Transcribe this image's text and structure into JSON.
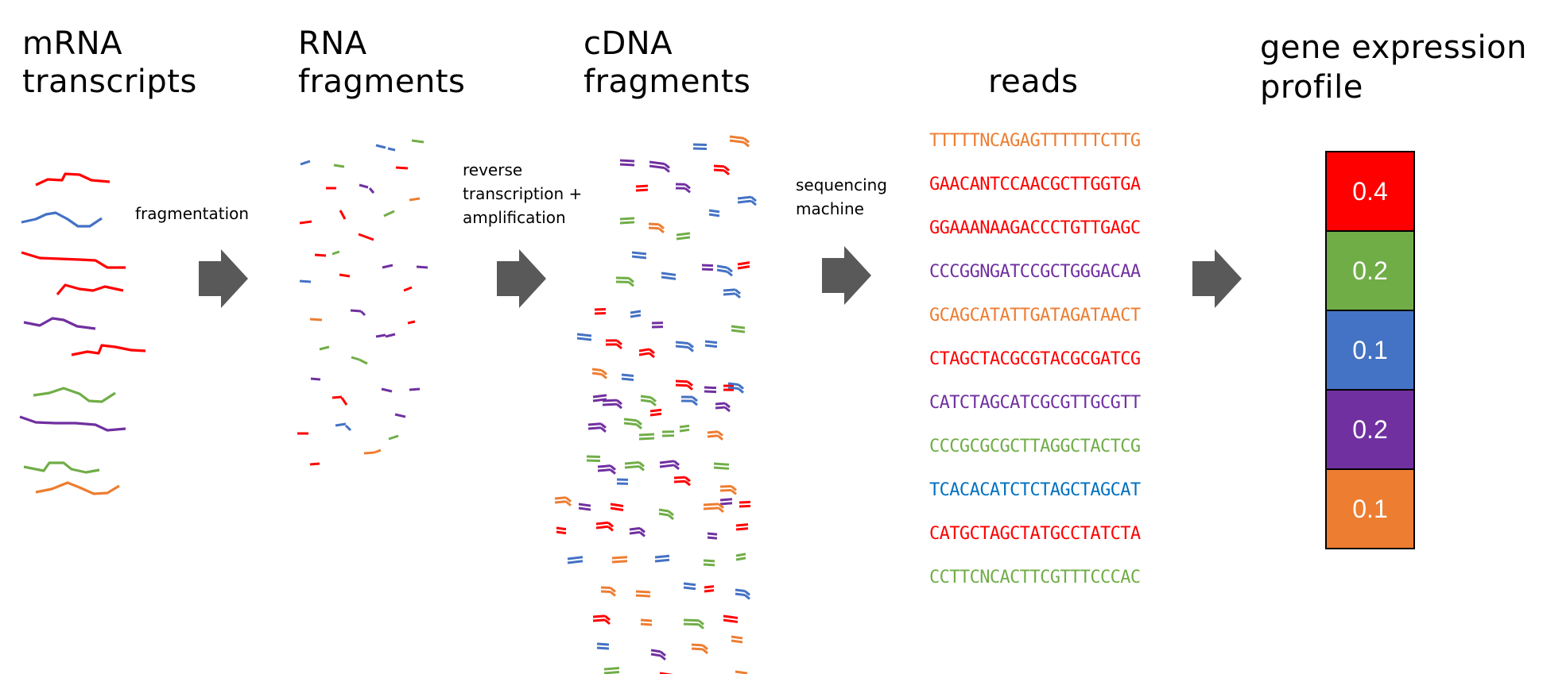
{
  "headings": {
    "mrna_line1": "mRNA",
    "mrna_line2": "transcripts",
    "rna_line1": "RNA",
    "rna_line2": "fragments",
    "cdna_line1": "cDNA",
    "cdna_line2": "fragments",
    "reads": "reads",
    "profile_line1": "gene expression",
    "profile_line2": "profile"
  },
  "steps": {
    "fragmentation": "fragmentation",
    "rt_line1": "reverse",
    "rt_line2": "transcription +",
    "rt_line3": "amplification",
    "seq_line1": "sequencing",
    "seq_line2": "machine"
  },
  "colors": {
    "red": "#ff0000",
    "green": "#70ad47",
    "blue": "#4472c4",
    "purple": "#7030a0",
    "orange": "#ed7d31",
    "read_blue": "#0070c0",
    "arrow": "#595959"
  },
  "reads": [
    {
      "seq": "TTTTTNCAGAGTTTTTTCTTG",
      "color": "#ed7d31"
    },
    {
      "seq": "GAACANTCCAACGCTTGGTGA",
      "color": "#ff0000"
    },
    {
      "seq": "GGAAANAAGACCCTGTTGAGC",
      "color": "#ff0000"
    },
    {
      "seq": "CCCGGNGATCCGCTGGGACAA",
      "color": "#7030a0"
    },
    {
      "seq": "GCAGCATATTGATAGATAACT",
      "color": "#ed7d31"
    },
    {
      "seq": "CTAGCTACGCGTACGCGATCG",
      "color": "#ff0000"
    },
    {
      "seq": "CATCTAGCATCGCGTTGCGTT",
      "color": "#7030a0"
    },
    {
      "seq": "CCCGCGCGCTTAGGCTACTCG",
      "color": "#70ad47"
    },
    {
      "seq": "TCACACATCTCTAGCTAGCAT",
      "color": "#0070c0"
    },
    {
      "seq": "CATGCTAGCTATGCCTATCTA",
      "color": "#ff0000"
    },
    {
      "seq": "CCTTCNCACTTCGTTTCCCAC",
      "color": "#70ad47"
    }
  ],
  "profile": [
    {
      "value": "0.4",
      "color": "#ff0000"
    },
    {
      "value": "0.2",
      "color": "#70ad47"
    },
    {
      "value": "0.1",
      "color": "#4472c4"
    },
    {
      "value": "0.2",
      "color": "#7030a0"
    },
    {
      "value": "0.1",
      "color": "#ed7d31"
    }
  ]
}
